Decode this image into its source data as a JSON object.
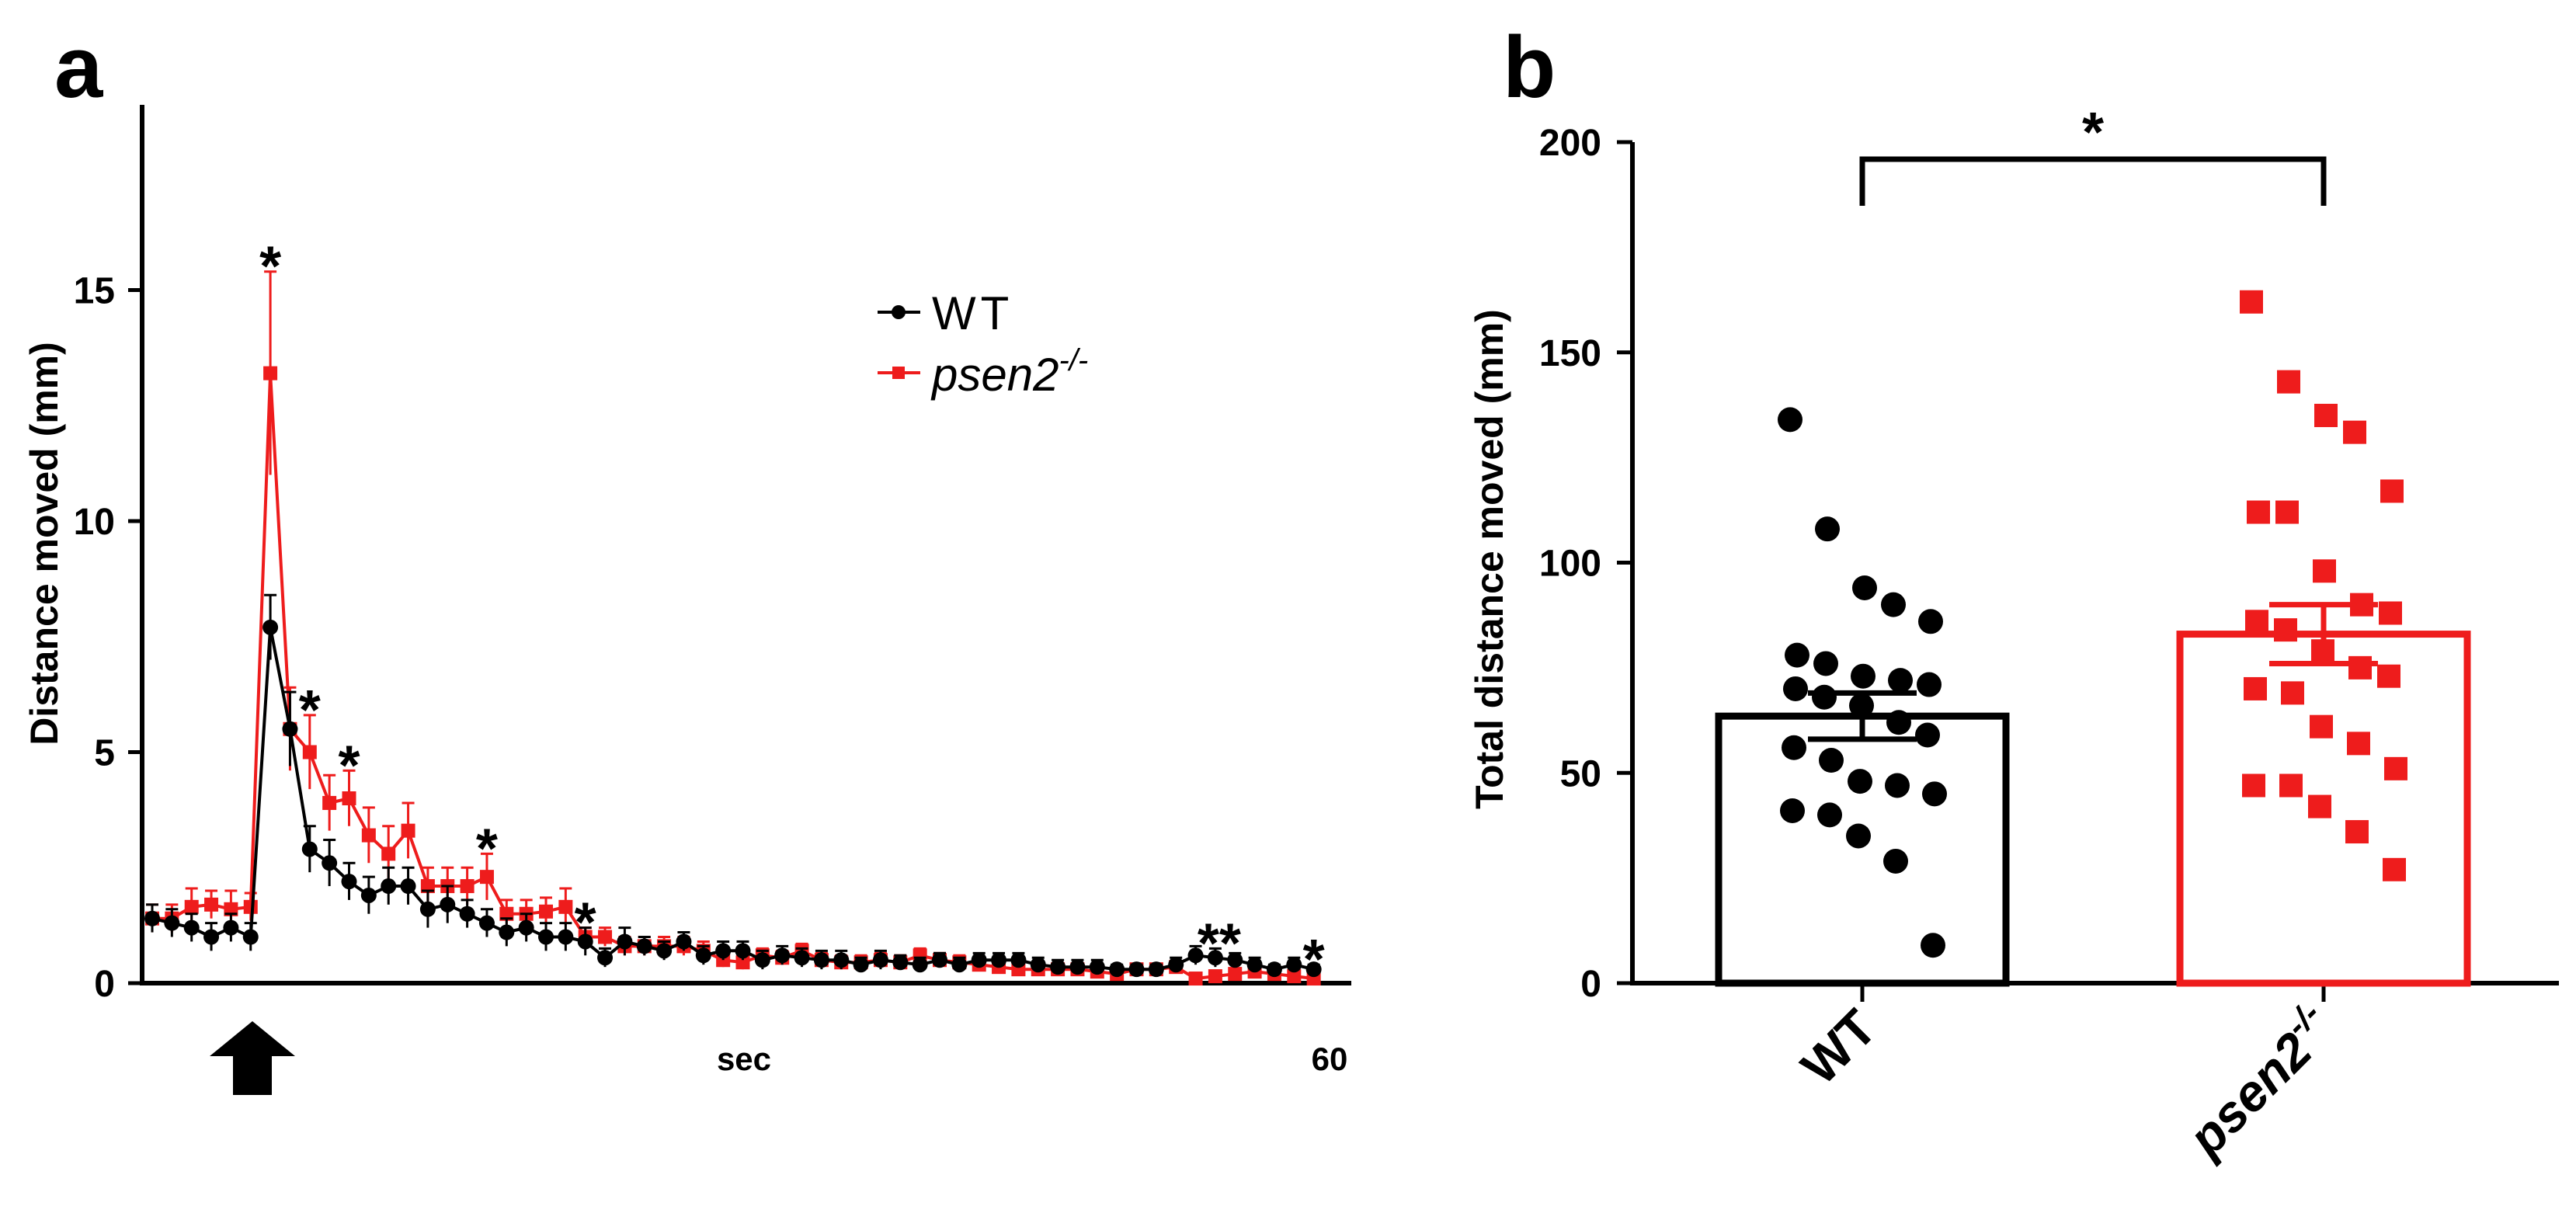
{
  "panels": {
    "a_label": "a",
    "b_label": "b"
  },
  "colors": {
    "wt": "#000000",
    "mutant": "#ee1c1c"
  },
  "chart_data": [
    {
      "panel": "a",
      "type": "line",
      "xlabel": "sec",
      "ylabel": "Distance moved (mm)",
      "ylim": [
        0,
        18
      ],
      "yticks": [
        0,
        5,
        10,
        15
      ],
      "ytick_labels": [
        "0",
        "5",
        "10",
        "15"
      ],
      "x_end_label": "60",
      "xlim": [
        1,
        60
      ],
      "legend_placement": "top-right",
      "stimulus_arrow_at": 6,
      "x": [
        1,
        2,
        3,
        4,
        5,
        6,
        7,
        8,
        9,
        10,
        11,
        12,
        13,
        14,
        15,
        16,
        17,
        18,
        19,
        20,
        21,
        22,
        23,
        24,
        25,
        26,
        27,
        28,
        29,
        30,
        31,
        32,
        33,
        34,
        35,
        36,
        37,
        38,
        39,
        40,
        41,
        42,
        43,
        44,
        45,
        46,
        47,
        48,
        49,
        50,
        51,
        52,
        53,
        54,
        55,
        56,
        57,
        58,
        59,
        60
      ],
      "series": [
        {
          "name": "WT",
          "marker": "circle",
          "values": [
            1.4,
            1.3,
            1.2,
            1.0,
            1.2,
            1.0,
            7.7,
            5.5,
            2.9,
            2.6,
            2.2,
            1.9,
            2.1,
            2.1,
            1.6,
            1.7,
            1.5,
            1.3,
            1.1,
            1.2,
            1.0,
            1.0,
            0.9,
            0.55,
            0.9,
            0.8,
            0.7,
            0.9,
            0.6,
            0.7,
            0.7,
            0.5,
            0.6,
            0.55,
            0.5,
            0.5,
            0.4,
            0.5,
            0.45,
            0.4,
            0.5,
            0.4,
            0.5,
            0.5,
            0.5,
            0.4,
            0.35,
            0.35,
            0.35,
            0.3,
            0.3,
            0.3,
            0.4,
            0.6,
            0.55,
            0.5,
            0.4,
            0.3,
            0.4,
            0.3
          ],
          "errors": [
            0.3,
            0.3,
            0.3,
            0.3,
            0.3,
            0.3,
            0.7,
            0.8,
            0.5,
            0.5,
            0.4,
            0.4,
            0.4,
            0.4,
            0.4,
            0.4,
            0.3,
            0.3,
            0.3,
            0.3,
            0.3,
            0.3,
            0.3,
            0.2,
            0.3,
            0.2,
            0.2,
            0.2,
            0.2,
            0.2,
            0.2,
            0.2,
            0.2,
            0.2,
            0.2,
            0.2,
            0.15,
            0.2,
            0.15,
            0.15,
            0.15,
            0.15,
            0.15,
            0.15,
            0.15,
            0.15,
            0.15,
            0.15,
            0.15,
            0.1,
            0.1,
            0.1,
            0.15,
            0.2,
            0.2,
            0.15,
            0.15,
            0.1,
            0.15,
            0.1
          ]
        },
        {
          "name": "psen2-/-",
          "marker": "square",
          "values": [
            1.4,
            1.4,
            1.65,
            1.7,
            1.6,
            1.65,
            13.2,
            5.5,
            5.0,
            3.9,
            4.0,
            3.2,
            2.8,
            3.3,
            2.1,
            2.1,
            2.1,
            2.3,
            1.5,
            1.5,
            1.55,
            1.65,
            1.0,
            1.0,
            0.8,
            0.8,
            0.8,
            0.8,
            0.7,
            0.5,
            0.45,
            0.6,
            0.55,
            0.7,
            0.5,
            0.45,
            0.45,
            0.5,
            0.45,
            0.6,
            0.5,
            0.45,
            0.4,
            0.35,
            0.3,
            0.3,
            0.3,
            0.3,
            0.25,
            0.2,
            0.3,
            0.3,
            0.35,
            0.1,
            0.15,
            0.2,
            0.25,
            0.2,
            0.15,
            0.1
          ],
          "errors": [
            0.3,
            0.3,
            0.4,
            0.3,
            0.4,
            0.3,
            2.2,
            0.9,
            0.8,
            0.6,
            0.6,
            0.6,
            0.6,
            0.6,
            0.4,
            0.4,
            0.4,
            0.5,
            0.3,
            0.3,
            0.3,
            0.4,
            0.2,
            0.2,
            0.2,
            0.2,
            0.2,
            0.2,
            0.2,
            0.15,
            0.15,
            0.15,
            0.15,
            0.15,
            0.15,
            0.15,
            0.15,
            0.15,
            0.15,
            0.15,
            0.15,
            0.15,
            0.1,
            0.1,
            0.1,
            0.1,
            0.1,
            0.1,
            0.1,
            0.1,
            0.1,
            0.1,
            0.1,
            0.1,
            0.1,
            0.1,
            0.1,
            0.1,
            0.1,
            0.1
          ]
        }
      ],
      "significance": [
        {
          "x": 7,
          "label": "*"
        },
        {
          "x": 9,
          "label": "*"
        },
        {
          "x": 11,
          "label": "*"
        },
        {
          "x": 18,
          "label": "*"
        },
        {
          "x": 23,
          "label": "*"
        },
        {
          "x": 55,
          "label": "**"
        },
        {
          "x": 60,
          "label": "*"
        }
      ]
    },
    {
      "panel": "b",
      "type": "bar",
      "ylabel": "Total distance moved (mm)",
      "ylim": [
        0,
        200
      ],
      "yticks": [
        0,
        50,
        100,
        150,
        200
      ],
      "ytick_labels": [
        "0",
        "50",
        "100",
        "150",
        "200"
      ],
      "categories": [
        "WT",
        "psen2-/-"
      ],
      "category_display": [
        {
          "base": "WT",
          "sup": ""
        },
        {
          "base": "psen2",
          "sup": "-/-"
        }
      ],
      "values": [
        63.5,
        83.0
      ],
      "sem": [
        5.5,
        7.0
      ],
      "bar_style": "outline",
      "points": [
        [
          134,
          108,
          94,
          90,
          86,
          78,
          76,
          73,
          72,
          71,
          70,
          68,
          66,
          62,
          59,
          56,
          53,
          48,
          47,
          45,
          41,
          40,
          35,
          29,
          9
        ],
        [
          162,
          143,
          135,
          131,
          117,
          112,
          112,
          98,
          90,
          88,
          86,
          84,
          79,
          75,
          73,
          70,
          69,
          61,
          57,
          51,
          47,
          47,
          42,
          36,
          27
        ]
      ],
      "comparison": {
        "between": [
          0,
          1
        ],
        "label": "*"
      }
    }
  ]
}
